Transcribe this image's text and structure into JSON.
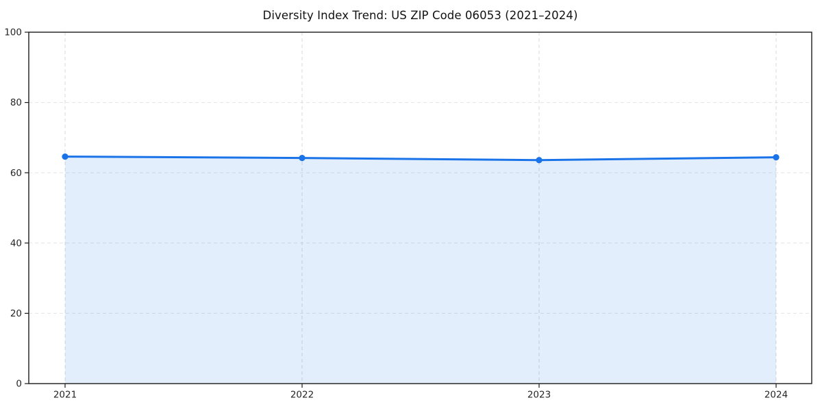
{
  "chart_data": {
    "type": "area",
    "title": "Diversity Index Trend: US ZIP Code 06053 (2021–2024)",
    "categories": [
      "2021",
      "2022",
      "2023",
      "2024"
    ],
    "series": [
      {
        "name": "Diversity Index",
        "values": [
          64.6,
          64.2,
          63.6,
          64.4
        ]
      }
    ],
    "xlabel": "",
    "ylabel": "",
    "ylim": [
      0,
      100
    ],
    "yticks": [
      0,
      20,
      40,
      60,
      80,
      100
    ],
    "grid": true,
    "legend_position": "none",
    "colors": {
      "line": "#1a73e8",
      "marker": "#1a73e8",
      "fill": "#1a73e8",
      "fill_opacity": 0.12,
      "grid_horizontal": "#e4e4e4",
      "grid_vertical": "#d8d8d8",
      "spine": "#1a1a1a",
      "tick_label": "#262626",
      "title": "#111111"
    }
  }
}
